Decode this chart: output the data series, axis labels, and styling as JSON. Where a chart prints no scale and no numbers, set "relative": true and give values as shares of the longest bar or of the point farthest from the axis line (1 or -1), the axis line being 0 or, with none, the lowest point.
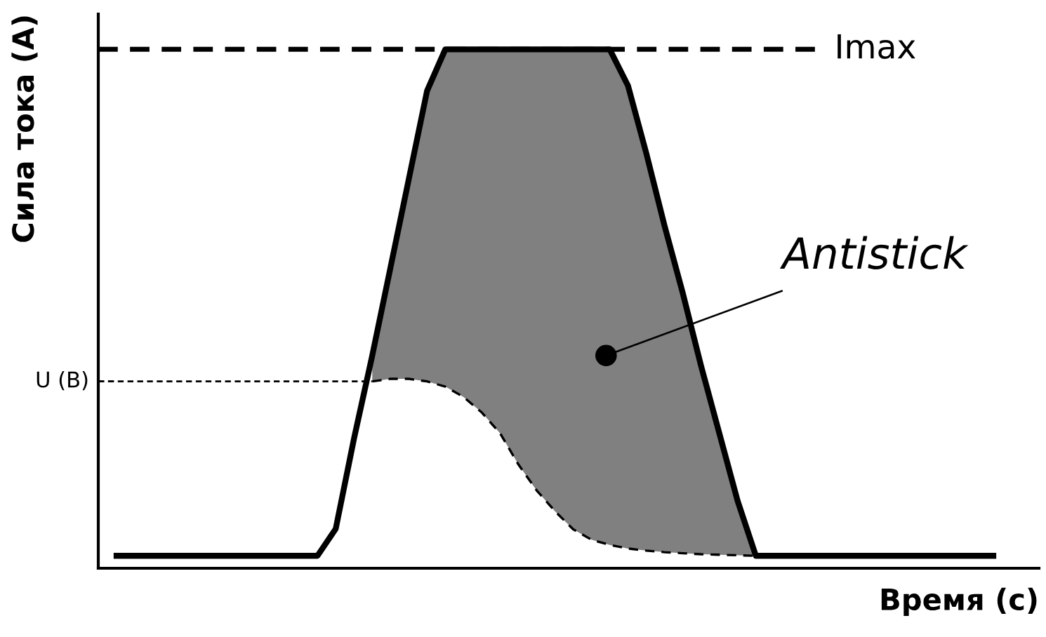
{
  "chart_data": {
    "type": "line",
    "relative": true,
    "xlabel": "Время (с)",
    "ylabel": "Сила тока (А)",
    "categories": [
      null,
      null,
      null,
      null,
      null,
      null,
      null,
      null,
      null,
      null,
      null,
      null,
      null,
      null,
      null,
      null,
      null,
      null,
      null,
      null,
      null,
      null,
      null,
      null,
      null,
      null,
      null,
      null,
      null,
      null,
      null,
      null,
      null,
      null,
      null,
      null,
      null,
      null,
      null,
      null,
      null,
      null,
      null,
      null,
      null,
      null,
      null,
      null,
      null
    ],
    "series": [
      {
        "type": "area",
        "color": "#808080",
        "values": [
          null,
          null,
          null,
          null,
          null,
          null,
          null,
          null,
          null,
          null,
          null,
          null,
          null,
          null,
          0.41,
          0.58,
          0.75,
          0.92,
          1,
          1,
          1,
          1,
          1,
          1,
          1,
          1,
          1,
          1,
          0.93,
          0.8,
          0.66,
          0.53,
          0.39,
          0.26,
          0.13,
          0.024,
          null,
          null,
          null,
          null,
          null,
          null,
          null,
          null,
          null,
          null,
          null,
          null,
          null
        ]
      },
      {
        "type": "line",
        "color": "#000000",
        "line_style": "solid",
        "values": [
          0.024,
          0.024,
          0.024,
          0.024,
          0.024,
          0.024,
          0.024,
          0.024,
          0.024,
          0.024,
          0.024,
          0.024,
          0.076,
          0.25,
          0.41,
          0.58,
          0.75,
          0.92,
          1,
          1,
          1,
          1,
          1,
          1,
          1,
          1,
          1,
          1,
          0.93,
          0.8,
          0.66,
          0.53,
          0.39,
          0.26,
          0.13,
          0.024,
          0.024,
          0.024,
          0.024,
          0.024,
          0.024,
          0.024,
          0.024,
          0.024,
          0.024,
          0.024,
          0.024,
          0.024,
          0.024
        ]
      },
      {
        "type": "line",
        "color": "#000000",
        "line_style": "dashed",
        "values": [
          null,
          null,
          null,
          null,
          null,
          null,
          null,
          null,
          null,
          null,
          null,
          null,
          null,
          null,
          0.36,
          0.365,
          0.365,
          0.36,
          0.35,
          0.33,
          0.3,
          0.26,
          0.2,
          0.15,
          0.11,
          0.075,
          0.055,
          0.045,
          0.038,
          0.034,
          0.031,
          0.029,
          0.027,
          0.026,
          0.025,
          0.024,
          null,
          null,
          null,
          null,
          null,
          null,
          null,
          null,
          null,
          null,
          null,
          null,
          null
        ]
      }
    ],
    "ref_lines": [
      {
        "axis": "y",
        "value": 1,
        "label": "Imax",
        "line_style": "dashed",
        "color": "#000000"
      },
      {
        "axis": "y",
        "value": 0.36,
        "label": "U (B)",
        "line_style": "dotted",
        "color": "#000000"
      }
    ],
    "annotations": [
      "Antistick"
    ],
    "legend": false
  }
}
